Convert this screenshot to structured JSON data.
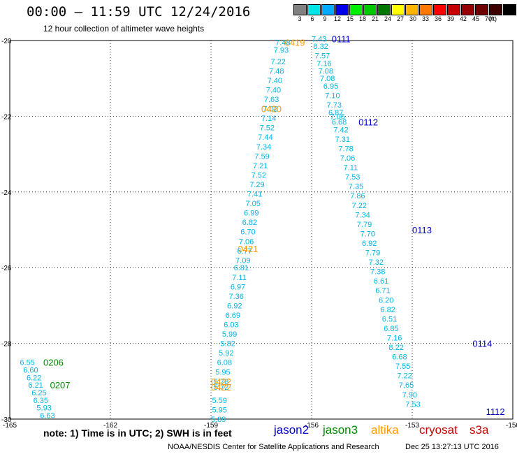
{
  "header": {
    "title": "00:00 — 11:59 UTC 12/24/2016",
    "subtitle": "12 hour collection of altimeter wave heights"
  },
  "legend": {
    "unit": "(ft)",
    "labels": [
      "3",
      "6",
      "9",
      "12",
      "15",
      "18",
      "21",
      "24",
      "27",
      "30",
      "33",
      "36",
      "39",
      "42",
      "45",
      "70"
    ],
    "colors": [
      "#808080",
      "#00e5e5",
      "#00aaff",
      "#0000ee",
      "#00ee00",
      "#00c800",
      "#007800",
      "#ffff00",
      "#ffb400",
      "#ff7800",
      "#ff0000",
      "#c80000",
      "#960000",
      "#6e0000",
      "#3c0000",
      "#000000"
    ]
  },
  "footer": {
    "note": "note: 1) Time is in UTC; 2) SWH is in feet",
    "satellites": [
      {
        "name": "jason2",
        "color": "#0000cc"
      },
      {
        "name": "jason3",
        "color": "#008800"
      },
      {
        "name": "altika",
        "color": "#ff9900"
      },
      {
        "name": "cryosat",
        "color": "#cc0000"
      },
      {
        "name": "s3a",
        "color": "#cc0000"
      }
    ],
    "credit": "NOAA/NESDIS Center for Satellite Applications and Research",
    "timestamp": "Dec 25 13:27:13 UTC 2016"
  },
  "chart_data": {
    "type": "scatter",
    "xlim": [
      -165,
      -150
    ],
    "ylim": [
      -30,
      -20
    ],
    "xticks": [
      -165,
      -162,
      -159,
      -156,
      -153,
      -150
    ],
    "yticks": [
      -20,
      -22,
      -24,
      -26,
      -28,
      -30
    ],
    "grid": true,
    "pass_labels": [
      {
        "text": "0419",
        "x": -156.8,
        "y": -20.05,
        "sat": "altika"
      },
      {
        "text": "0420",
        "x": -157.5,
        "y": -21.8,
        "sat": "altika"
      },
      {
        "text": "0421",
        "x": -158.2,
        "y": -25.5,
        "sat": "altika"
      },
      {
        "text": "0422",
        "x": -159.0,
        "y": -29.0,
        "sat": "altika"
      },
      {
        "text": "0422",
        "x": -159.0,
        "y": -29.15,
        "sat": "altika"
      },
      {
        "text": "0111",
        "x": -155.4,
        "y": -19.95,
        "sat": "jason2"
      },
      {
        "text": "0112",
        "x": -154.6,
        "y": -22.15,
        "sat": "jason2"
      },
      {
        "text": "0113",
        "x": -153.0,
        "y": -25.0,
        "sat": "jason2"
      },
      {
        "text": "0114",
        "x": -151.2,
        "y": -28.0,
        "sat": "jason2"
      },
      {
        "text": "1112",
        "x": -150.8,
        "y": -29.8,
        "sat": "jason2"
      },
      {
        "text": "0206",
        "x": -164.0,
        "y": -28.5,
        "sat": "jason3"
      },
      {
        "text": "0207",
        "x": -163.8,
        "y": -29.1,
        "sat": "jason3"
      }
    ],
    "tracks": [
      {
        "sat": "altika",
        "points": [
          {
            "x": -157.08,
            "y": -20.05,
            "v": 7.48
          },
          {
            "x": -157.13,
            "y": -20.25,
            "v": 7.93
          },
          {
            "x": -157.22,
            "y": -20.55,
            "v": 7.22
          },
          {
            "x": -157.27,
            "y": -20.8,
            "v": 7.48
          },
          {
            "x": -157.32,
            "y": -21.05,
            "v": 7.4
          },
          {
            "x": -157.36,
            "y": -21.3,
            "v": 7.4
          },
          {
            "x": -157.42,
            "y": -21.55,
            "v": 7.63
          },
          {
            "x": -157.45,
            "y": -21.8,
            "v": 7.02
          },
          {
            "x": -157.5,
            "y": -22.05,
            "v": 7.14
          },
          {
            "x": -157.55,
            "y": -22.3,
            "v": 7.52
          },
          {
            "x": -157.6,
            "y": -22.55,
            "v": 7.44
          },
          {
            "x": -157.65,
            "y": -22.8,
            "v": 7.34
          },
          {
            "x": -157.7,
            "y": -23.05,
            "v": 7.59
          },
          {
            "x": -157.75,
            "y": -23.3,
            "v": 7.21
          },
          {
            "x": -157.8,
            "y": -23.55,
            "v": 7.52
          },
          {
            "x": -157.85,
            "y": -23.8,
            "v": 7.29
          },
          {
            "x": -157.92,
            "y": -24.05,
            "v": 7.41
          },
          {
            "x": -157.97,
            "y": -24.3,
            "v": 7.05
          },
          {
            "x": -158.02,
            "y": -24.55,
            "v": 6.99
          },
          {
            "x": -158.07,
            "y": -24.8,
            "v": 6.82
          },
          {
            "x": -158.12,
            "y": -25.05,
            "v": 6.7
          },
          {
            "x": -158.17,
            "y": -25.3,
            "v": 7.06
          },
          {
            "x": -158.22,
            "y": -25.55,
            "v": 6.77
          },
          {
            "x": -158.27,
            "y": -25.8,
            "v": 7.09
          },
          {
            "x": -158.32,
            "y": -26.0,
            "v": 6.81
          },
          {
            "x": -158.37,
            "y": -26.25,
            "v": 7.11
          },
          {
            "x": -158.42,
            "y": -26.5,
            "v": 6.97
          },
          {
            "x": -158.47,
            "y": -26.75,
            "v": 7.36
          },
          {
            "x": -158.52,
            "y": -27.0,
            "v": 6.92
          },
          {
            "x": -158.57,
            "y": -27.25,
            "v": 6.69
          },
          {
            "x": -158.62,
            "y": -27.5,
            "v": 6.03
          },
          {
            "x": -158.67,
            "y": -27.75,
            "v": 5.99
          },
          {
            "x": -158.72,
            "y": -28.0,
            "v": 5.82
          },
          {
            "x": -158.77,
            "y": -28.25,
            "v": 5.92
          },
          {
            "x": -158.82,
            "y": -28.5,
            "v": 6.08
          },
          {
            "x": -158.87,
            "y": -28.75,
            "v": 5.95
          },
          {
            "x": -158.92,
            "y": -29.0,
            "v": 5.78
          },
          {
            "x": -158.92,
            "y": -29.15,
            "v": 5.72
          },
          {
            "x": -158.97,
            "y": -29.5,
            "v": 5.59
          },
          {
            "x": -158.97,
            "y": -29.75,
            "v": 5.95
          },
          {
            "x": -159.0,
            "y": -30.0,
            "v": 5.89
          }
        ]
      },
      {
        "sat": "jason2",
        "points": [
          {
            "x": -156.0,
            "y": -19.95,
            "v": 7.43
          },
          {
            "x": -155.95,
            "y": -20.15,
            "v": 8.32
          },
          {
            "x": -155.9,
            "y": -20.4,
            "v": 7.57
          },
          {
            "x": -155.85,
            "y": -20.6,
            "v": 7.16
          },
          {
            "x": -155.8,
            "y": -20.8,
            "v": 7.08
          },
          {
            "x": -155.75,
            "y": -21.0,
            "v": 7.08
          },
          {
            "x": -155.65,
            "y": -21.2,
            "v": 6.95
          },
          {
            "x": -155.6,
            "y": -21.45,
            "v": 7.1
          },
          {
            "x": -155.55,
            "y": -21.7,
            "v": 7.73
          },
          {
            "x": -155.5,
            "y": -21.9,
            "v": 6.87
          },
          {
            "x": -155.45,
            "y": -22.0,
            "v": 7.06
          },
          {
            "x": -155.4,
            "y": -22.15,
            "v": 6.68
          },
          {
            "x": -155.35,
            "y": -22.35,
            "v": 7.42
          },
          {
            "x": -155.3,
            "y": -22.6,
            "v": 7.31
          },
          {
            "x": -155.2,
            "y": -22.85,
            "v": 7.78
          },
          {
            "x": -155.15,
            "y": -23.1,
            "v": 7.06
          },
          {
            "x": -155.05,
            "y": -23.35,
            "v": 7.11
          },
          {
            "x": -155.0,
            "y": -23.6,
            "v": 7.53
          },
          {
            "x": -154.9,
            "y": -23.85,
            "v": 7.35
          },
          {
            "x": -154.85,
            "y": -24.1,
            "v": 7.86
          },
          {
            "x": -154.8,
            "y": -24.35,
            "v": 7.22
          },
          {
            "x": -154.7,
            "y": -24.6,
            "v": 7.34
          },
          {
            "x": -154.65,
            "y": -24.85,
            "v": 7.79
          },
          {
            "x": -154.55,
            "y": -25.1,
            "v": 7.7
          },
          {
            "x": -154.5,
            "y": -25.35,
            "v": 6.92
          },
          {
            "x": -154.4,
            "y": -25.6,
            "v": 7.79
          },
          {
            "x": -154.3,
            "y": -25.85,
            "v": 7.32
          },
          {
            "x": -154.25,
            "y": -26.1,
            "v": 7.38
          },
          {
            "x": -154.15,
            "y": -26.35,
            "v": 6.61
          },
          {
            "x": -154.1,
            "y": -26.6,
            "v": 6.71
          },
          {
            "x": -154.0,
            "y": -26.85,
            "v": 6.2
          },
          {
            "x": -153.95,
            "y": -27.1,
            "v": 6.82
          },
          {
            "x": -153.9,
            "y": -27.35,
            "v": 6.51
          },
          {
            "x": -153.85,
            "y": -27.6,
            "v": 6.85
          },
          {
            "x": -153.75,
            "y": -27.85,
            "v": 7.16
          },
          {
            "x": -153.7,
            "y": -28.1,
            "v": 8.22
          },
          {
            "x": -153.6,
            "y": -28.35,
            "v": 6.68
          },
          {
            "x": -153.5,
            "y": -28.6,
            "v": 7.55
          },
          {
            "x": -153.45,
            "y": -28.85,
            "v": 7.22
          },
          {
            "x": -153.4,
            "y": -29.1,
            "v": 7.65
          },
          {
            "x": -153.3,
            "y": -29.35,
            "v": 7.9
          },
          {
            "x": -153.2,
            "y": -29.6,
            "v": 7.53
          }
        ]
      },
      {
        "sat": "jason3",
        "points": [
          {
            "x": -164.7,
            "y": -28.5,
            "v": 6.55
          },
          {
            "x": -164.6,
            "y": -28.7,
            "v": 6.6
          },
          {
            "x": -164.5,
            "y": -28.9,
            "v": 6.22
          },
          {
            "x": -164.45,
            "y": -29.1,
            "v": 6.21
          },
          {
            "x": -164.35,
            "y": -29.3,
            "v": 6.25
          },
          {
            "x": -164.3,
            "y": -29.5,
            "v": 6.35
          },
          {
            "x": -164.2,
            "y": -29.7,
            "v": 5.93
          },
          {
            "x": -164.1,
            "y": -29.9,
            "v": 6.63
          }
        ]
      }
    ]
  }
}
